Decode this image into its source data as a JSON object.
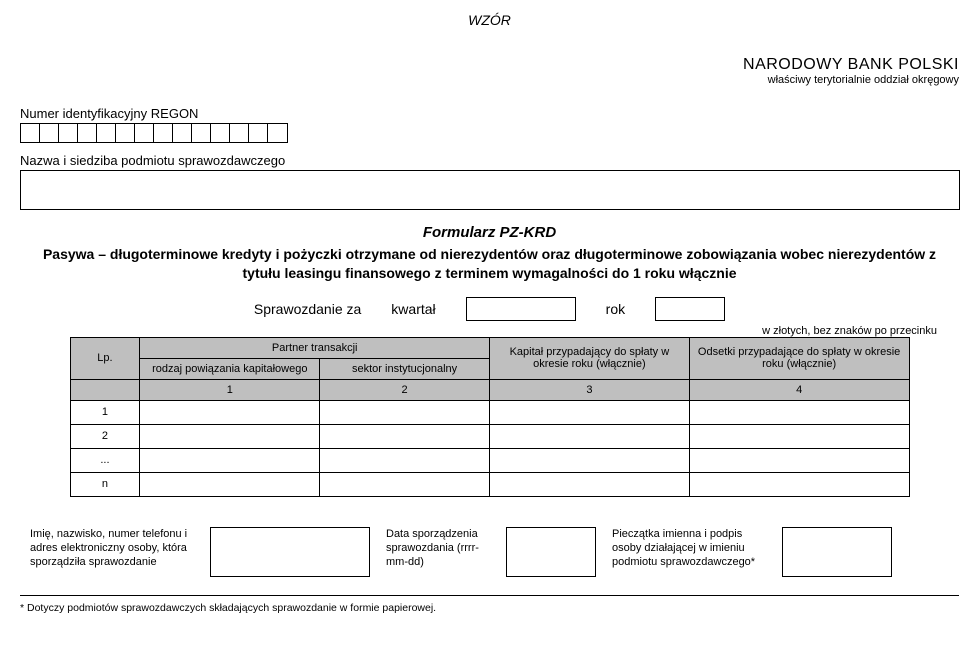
{
  "header": {
    "wzor": "WZÓR",
    "bank_name": "NARODOWY BANK POLSKI",
    "bank_sub": "właściwy terytorialnie oddział okręgowy"
  },
  "regon": {
    "label": "Numer identyfikacyjny REGON",
    "box_count": 14
  },
  "entity": {
    "label": "Nazwa i siedziba podmiotu sprawozdawczego"
  },
  "form": {
    "title": "Formularz PZ-KRD",
    "subtitle": "Pasywa – długoterminowe kredyty i pożyczki otrzymane od nierezydentów oraz długoterminowe zobowiązania wobec nierezydentów z tytułu leasingu finansowego z terminem wymagalności do 1 roku włącznie"
  },
  "period": {
    "report_for": "Sprawozdanie za",
    "quarter": "kwartał",
    "year": "rok"
  },
  "unit_note": "w złotych, bez znaków po przecinku",
  "table": {
    "lp": "Lp.",
    "partner_group": "Partner transakcji",
    "col1": "rodzaj powiązania kapitałowego",
    "col2": "sektor instytucjonalny",
    "col3": "Kapitał przypadający do spłaty w okresie roku (włącznie)",
    "col4": "Odsetki przypadające do spłaty w okresie roku (włącznie)",
    "num1": "1",
    "num2": "2",
    "num3": "3",
    "num4": "4",
    "rows": [
      "1",
      "2",
      "...",
      "n"
    ],
    "header_bg": "#bfbfbf",
    "border_color": "#000000"
  },
  "footer": {
    "block1": "Imię, nazwisko, numer telefonu i adres elektroniczny osoby, która sporządziła sprawozdanie",
    "block2": "Data sporządzenia sprawozdania (rrrr-mm-dd)",
    "block3": "Pieczątka imienna i podpis osoby działającej w imieniu podmiotu sprawozdawczego*"
  },
  "footnote": "* Dotyczy podmiotów sprawozdawczych składających sprawozdanie w formie papierowej.",
  "style": {
    "background_color": "#ffffff",
    "text_color": "#000000",
    "font_family": "Arial, sans-serif"
  }
}
